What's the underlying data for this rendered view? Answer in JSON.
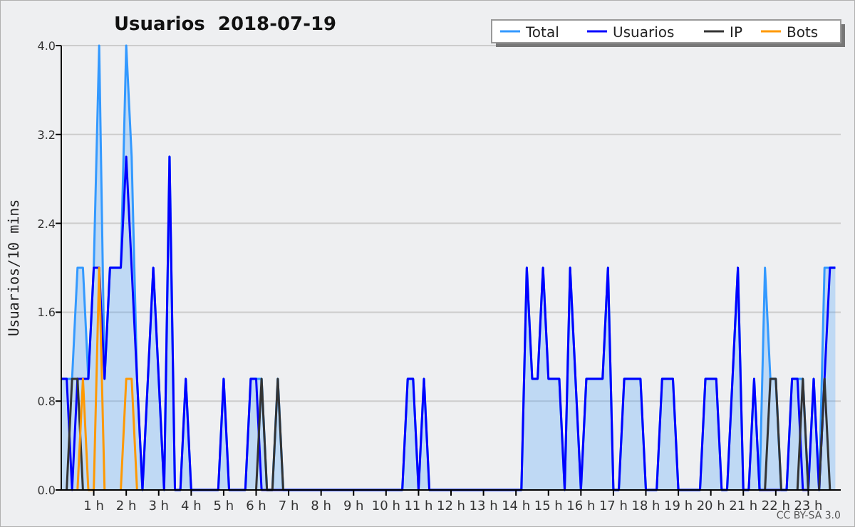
{
  "chart_data": {
    "type": "line",
    "title": "Usuarios  2018-07-19",
    "ylabel": "Usuarios/10 mins",
    "annotations": [
      "CC BY-SA 3.0"
    ],
    "x": [
      0,
      0.167,
      0.333,
      0.5,
      0.667,
      0.833,
      1,
      1.167,
      1.333,
      1.5,
      1.667,
      1.833,
      2,
      2.167,
      2.333,
      2.5,
      2.667,
      2.833,
      3,
      3.167,
      3.333,
      3.5,
      3.667,
      3.833,
      4,
      4.167,
      4.333,
      4.5,
      4.667,
      4.833,
      5,
      5.167,
      5.333,
      5.5,
      5.667,
      5.833,
      6,
      6.167,
      6.333,
      6.5,
      6.667,
      6.833,
      7,
      7.167,
      7.333,
      7.5,
      7.667,
      7.833,
      8,
      8.167,
      8.333,
      8.5,
      8.667,
      8.833,
      9,
      9.167,
      9.333,
      9.5,
      9.667,
      9.833,
      10,
      10.167,
      10.333,
      10.5,
      10.667,
      10.833,
      11,
      11.167,
      11.333,
      11.5,
      11.667,
      11.833,
      12,
      12.167,
      12.333,
      12.5,
      12.667,
      12.833,
      13,
      13.167,
      13.333,
      13.5,
      13.667,
      13.833,
      14,
      14.167,
      14.333,
      14.5,
      14.667,
      14.833,
      15,
      15.167,
      15.333,
      15.5,
      15.667,
      15.833,
      16,
      16.167,
      16.333,
      16.5,
      16.667,
      16.833,
      17,
      17.167,
      17.333,
      17.5,
      17.667,
      17.833,
      18,
      18.167,
      18.333,
      18.5,
      18.667,
      18.833,
      19,
      19.167,
      19.333,
      19.5,
      19.667,
      19.833,
      20,
      20.167,
      20.333,
      20.5,
      20.667,
      20.833,
      21,
      21.167,
      21.333,
      21.5,
      21.667,
      21.833,
      22,
      22.167,
      22.333,
      22.5,
      22.667,
      22.833,
      23,
      23.167,
      23.333,
      23.5,
      23.667,
      23.833
    ],
    "series": [
      {
        "name": "Total",
        "type": "area",
        "color": "#3399ff",
        "values": [
          1,
          1,
          1,
          2,
          2,
          1,
          2,
          4,
          1,
          2,
          2,
          2,
          4,
          3,
          1,
          0,
          1,
          2,
          1,
          0,
          3,
          0,
          0,
          1,
          0,
          0,
          0,
          0,
          0,
          0,
          1,
          0,
          0,
          0,
          0,
          1,
          1,
          1,
          0,
          0,
          1,
          0,
          0,
          0,
          0,
          0,
          0,
          0,
          0,
          0,
          0,
          0,
          0,
          0,
          0,
          0,
          0,
          0,
          0,
          0,
          0,
          0,
          0,
          0,
          1,
          1,
          0,
          1,
          0,
          0,
          0,
          0,
          0,
          0,
          0,
          0,
          0,
          0,
          0,
          0,
          0,
          0,
          0,
          0,
          0,
          0,
          2,
          1,
          1,
          2,
          1,
          1,
          1,
          0,
          2,
          1,
          0,
          1,
          1,
          1,
          1,
          2,
          0,
          0,
          1,
          1,
          1,
          1,
          0,
          0,
          0,
          1,
          1,
          1,
          0,
          0,
          0,
          0,
          0,
          1,
          1,
          1,
          0,
          0,
          1,
          2,
          0,
          0,
          1,
          0,
          2,
          1,
          1,
          0,
          0,
          1,
          1,
          1,
          0,
          1,
          0,
          2,
          2,
          2
        ]
      },
      {
        "name": "Usuarios",
        "color": "#0000ff",
        "values": [
          1,
          1,
          0,
          1,
          1,
          1,
          2,
          2,
          1,
          2,
          2,
          2,
          3,
          2,
          1,
          0,
          1,
          2,
          1,
          0,
          3,
          0,
          0,
          1,
          0,
          0,
          0,
          0,
          0,
          0,
          1,
          0,
          0,
          0,
          0,
          1,
          1,
          0,
          0,
          0,
          0,
          0,
          0,
          0,
          0,
          0,
          0,
          0,
          0,
          0,
          0,
          0,
          0,
          0,
          0,
          0,
          0,
          0,
          0,
          0,
          0,
          0,
          0,
          0,
          1,
          1,
          0,
          1,
          0,
          0,
          0,
          0,
          0,
          0,
          0,
          0,
          0,
          0,
          0,
          0,
          0,
          0,
          0,
          0,
          0,
          0,
          2,
          1,
          1,
          2,
          1,
          1,
          1,
          0,
          2,
          1,
          0,
          1,
          1,
          1,
          1,
          2,
          0,
          0,
          1,
          1,
          1,
          1,
          0,
          0,
          0,
          1,
          1,
          1,
          0,
          0,
          0,
          0,
          0,
          1,
          1,
          1,
          0,
          0,
          1,
          2,
          0,
          0,
          1,
          0,
          0,
          0,
          0,
          0,
          0,
          1,
          1,
          0,
          0,
          1,
          0,
          1,
          2,
          2
        ]
      },
      {
        "name": "IP",
        "color": "#333333",
        "values": [
          null,
          0,
          1,
          1,
          0,
          null,
          null,
          null,
          null,
          null,
          null,
          null,
          null,
          null,
          null,
          null,
          null,
          null,
          null,
          null,
          null,
          null,
          null,
          null,
          null,
          null,
          null,
          null,
          null,
          null,
          null,
          null,
          null,
          null,
          null,
          null,
          0,
          1,
          0,
          0,
          1,
          0,
          null,
          null,
          null,
          null,
          null,
          null,
          null,
          null,
          null,
          null,
          null,
          null,
          null,
          null,
          null,
          null,
          null,
          null,
          null,
          null,
          null,
          null,
          null,
          null,
          null,
          null,
          null,
          null,
          null,
          null,
          null,
          null,
          null,
          null,
          null,
          null,
          null,
          null,
          null,
          null,
          null,
          null,
          null,
          null,
          null,
          null,
          null,
          null,
          null,
          null,
          null,
          null,
          null,
          null,
          null,
          null,
          null,
          null,
          null,
          null,
          null,
          null,
          null,
          null,
          null,
          null,
          null,
          null,
          null,
          null,
          null,
          null,
          null,
          null,
          null,
          null,
          null,
          null,
          null,
          null,
          null,
          null,
          null,
          null,
          null,
          null,
          null,
          null,
          0,
          1,
          1,
          0,
          null,
          null,
          0,
          1,
          0,
          null,
          0,
          1,
          0,
          null
        ]
      },
      {
        "name": "Bots",
        "color": "#ff9900",
        "values": [
          null,
          null,
          null,
          0,
          1,
          0,
          0,
          2,
          0,
          null,
          null,
          0,
          1,
          1,
          0,
          null,
          null,
          null,
          null,
          null,
          null,
          null,
          null,
          null,
          null,
          null,
          null,
          null,
          null,
          null,
          null,
          null,
          null,
          null,
          null,
          null,
          null,
          null,
          null,
          null,
          null,
          null,
          null,
          null,
          null,
          null,
          null,
          null,
          null,
          null,
          null,
          null,
          null,
          null,
          null,
          null,
          null,
          null,
          null,
          null,
          null,
          null,
          null,
          null,
          null,
          null,
          null,
          null,
          null,
          null,
          null,
          null,
          null,
          null,
          null,
          null,
          null,
          null,
          null,
          null,
          null,
          null,
          null,
          null,
          null,
          null,
          null,
          null,
          null,
          null,
          null,
          null,
          null,
          null,
          null,
          null,
          null,
          null,
          null,
          null,
          null,
          null,
          null,
          null,
          null,
          null,
          null,
          null,
          null,
          null,
          null,
          null,
          null,
          null,
          null,
          null,
          null,
          null,
          null,
          null,
          null,
          null,
          null,
          null,
          null,
          null,
          null,
          null,
          null,
          null,
          null,
          null,
          null,
          null,
          null,
          null,
          null,
          null,
          null,
          null,
          null,
          null,
          null,
          null
        ]
      }
    ],
    "xlim": [
      0,
      24
    ],
    "xticks": [
      {
        "value": 1,
        "label": "1 h"
      },
      {
        "value": 2,
        "label": "2 h"
      },
      {
        "value": 3,
        "label": "3 h"
      },
      {
        "value": 4,
        "label": "4 h"
      },
      {
        "value": 5,
        "label": "5 h"
      },
      {
        "value": 6,
        "label": "6 h"
      },
      {
        "value": 7,
        "label": "7 h"
      },
      {
        "value": 8,
        "label": "8 h"
      },
      {
        "value": 9,
        "label": "9 h"
      },
      {
        "value": 10,
        "label": "10 h"
      },
      {
        "value": 11,
        "label": "11 h"
      },
      {
        "value": 12,
        "label": "12 h"
      },
      {
        "value": 13,
        "label": "13 h"
      },
      {
        "value": 14,
        "label": "14 h"
      },
      {
        "value": 15,
        "label": "15 h"
      },
      {
        "value": 16,
        "label": "16 h"
      },
      {
        "value": 17,
        "label": "17 h"
      },
      {
        "value": 18,
        "label": "18 h"
      },
      {
        "value": 19,
        "label": "19 h"
      },
      {
        "value": 20,
        "label": "20 h"
      },
      {
        "value": 21,
        "label": "21 h"
      },
      {
        "value": 22,
        "label": "22 h"
      },
      {
        "value": 23,
        "label": "23 h"
      }
    ],
    "ylim": [
      0,
      4
    ],
    "yticks": [
      {
        "value": 0,
        "label": "0.0"
      },
      {
        "value": 0.8,
        "label": "0.8"
      },
      {
        "value": 1.6,
        "label": "1.6"
      },
      {
        "value": 2.4,
        "label": "2.4"
      },
      {
        "value": 3.2,
        "label": "3.2"
      },
      {
        "value": 4,
        "label": "4.0"
      }
    ],
    "grid": "y",
    "legend": "top right",
    "marker": "none",
    "line_style": "solid"
  }
}
